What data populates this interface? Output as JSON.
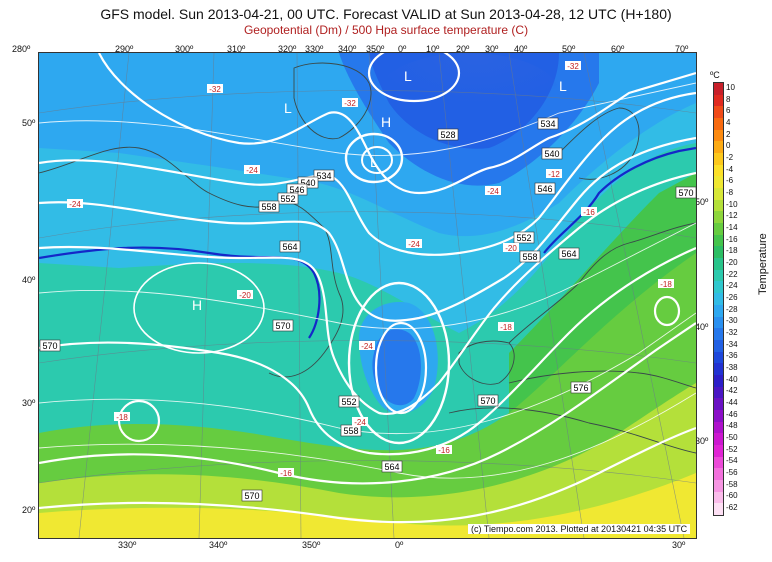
{
  "header": {
    "title": "GFS model. Sun 2013-04-21, 00 UTC. Forecast VALID at Sun 2013-04-28, 12 UTC (H+180)",
    "subtitle": "Geopotential (Dm) / 500 Hpa surface temperature (C)"
  },
  "axes": {
    "top_longitudes": [
      "280º",
      "290º",
      "300º",
      "310º",
      "320º",
      "330º",
      "340º",
      "350º",
      "0º",
      "10º",
      "20º",
      "30º",
      "40º",
      "50º",
      "60º",
      "70º"
    ],
    "bottom_longitudes": [
      "330º",
      "340º",
      "350º",
      "0º",
      "30º"
    ],
    "left_latitudes": [
      "50º",
      "40º",
      "30º",
      "20º"
    ],
    "right_latitudes": [
      "50º",
      "40º",
      "30º"
    ]
  },
  "colorbar": {
    "unit": "ºC",
    "title": "Temperature",
    "levels": [
      "10",
      "8",
      "6",
      "4",
      "2",
      "0",
      "-2",
      "-4",
      "-6",
      "-8",
      "-10",
      "-12",
      "-14",
      "-16",
      "-18",
      "-20",
      "-22",
      "-24",
      "-26",
      "-28",
      "-30",
      "-32",
      "-34",
      "-36",
      "-38",
      "-40",
      "-42",
      "-44",
      "-46",
      "-48",
      "-50",
      "-52",
      "-54",
      "-56",
      "-58",
      "-60",
      "-62"
    ],
    "colors": [
      "#c8202a",
      "#e02a20",
      "#f04a18",
      "#f86a10",
      "#fc8a10",
      "#fcaa14",
      "#fcc81c",
      "#fce028",
      "#f0e832",
      "#d8e838",
      "#b4e03a",
      "#8ed63c",
      "#66cc40",
      "#44c44c",
      "#2cbe64",
      "#28c48a",
      "#2ccaae",
      "#30c8ce",
      "#32bce6",
      "#2ea8f0",
      "#2a90f0",
      "#2678ec",
      "#2260e4",
      "#1e48dc",
      "#2232d2",
      "#2c1ec8",
      "#4a16c4",
      "#6a12c4",
      "#8c10c8",
      "#ae12cc",
      "#cc18d0",
      "#e024d4",
      "#ec4ad8",
      "#f270dc",
      "#f696e2",
      "#fabcea",
      "#fde0f4"
    ]
  },
  "map": {
    "pressure_systems": [
      {
        "letter": "L",
        "name": "low-north"
      },
      {
        "letter": "L",
        "name": "low-north-atlantic"
      },
      {
        "letter": "H",
        "name": "high-north"
      },
      {
        "letter": "L",
        "name": "low-iceland"
      },
      {
        "letter": "L",
        "name": "low-norway"
      },
      {
        "letter": "H",
        "name": "high-west"
      }
    ],
    "contour_labels": [
      "534",
      "540",
      "546",
      "552",
      "558",
      "564",
      "570",
      "528",
      "534",
      "540",
      "546",
      "552",
      "558",
      "564",
      "570",
      "552",
      "558",
      "564",
      "570",
      "576",
      "570",
      "570"
    ],
    "temperature_labels": [
      "-32",
      "-32",
      "-24",
      "-24",
      "-24",
      "-20",
      "-24",
      "-20",
      "-18",
      "-32",
      "-16",
      "-18",
      "-24",
      "-24",
      "-16",
      "-16",
      "-18",
      "-12"
    ],
    "credit": "(c) Tiempo.com 2013. Plotted at 20130421 04:35 UTC"
  }
}
